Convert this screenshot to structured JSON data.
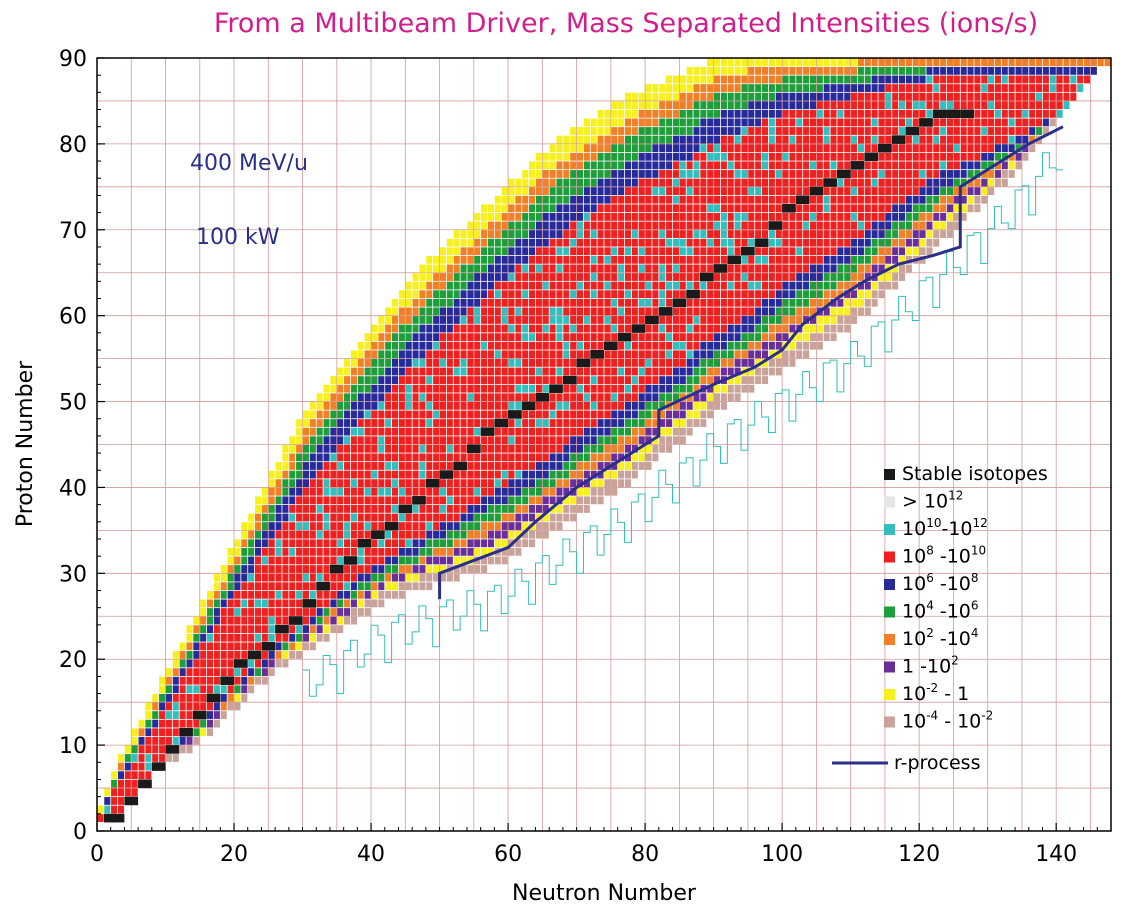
{
  "chart_data": {
    "type": "heatmap",
    "title": "From a Multibeam Driver, Mass Separated Intensities (ions/s)",
    "xlabel": "Neutron Number",
    "ylabel": "Proton Number",
    "xlim": [
      0,
      148
    ],
    "ylim": [
      0,
      90
    ],
    "x_ticks": [
      "0",
      "20",
      "40",
      "60",
      "80",
      "100",
      "120",
      "140"
    ],
    "y_ticks": [
      "0",
      "10",
      "20",
      "30",
      "40",
      "50",
      "60",
      "70",
      "80",
      "90"
    ],
    "grid": true,
    "annotations": [
      "400 MeV/u",
      "100 kW"
    ],
    "legend_position": "right",
    "legend": [
      {
        "label": "Stable isotopes",
        "color": "#1a1a1a"
      },
      {
        "base": "> 10",
        "sup": "12",
        "color": "#e6e6e6"
      },
      {
        "base": "10",
        "sup": "10",
        "mid": "-10",
        "sup2": "12",
        "color": "#33bdbd"
      },
      {
        "base": "10",
        "sup": "8",
        "mid": " -10",
        "sup2": "10",
        "color": "#ee2020"
      },
      {
        "base": "10",
        "sup": "6",
        "mid": " -10",
        "sup2": "8",
        "color": "#262a9a"
      },
      {
        "base": "10",
        "sup": "4",
        "mid": " -10",
        "sup2": "6",
        "color": "#1e9e3a"
      },
      {
        "base": "10",
        "sup": "2",
        "mid": " -10",
        "sup2": "4",
        "color": "#f07f26"
      },
      {
        "base": "1  -10",
        "sup": "2",
        "color": "#6a2e9a"
      },
      {
        "base": "10",
        "sup": "-2",
        "mid": " - 1",
        "color": "#f7ef1e"
      },
      {
        "base": "10",
        "sup": "-4",
        "mid": " - 10",
        "sup2": "-2",
        "color": "#c9a29a"
      }
    ],
    "line_legend": {
      "label": "r-process",
      "color": "#2a2f8a"
    },
    "stable_line": [
      [
        1,
        1
      ],
      [
        2,
        1
      ],
      [
        4,
        3
      ],
      [
        6,
        5
      ],
      [
        8,
        7
      ],
      [
        10,
        9
      ],
      [
        12,
        11
      ],
      [
        14,
        13
      ],
      [
        16,
        15
      ],
      [
        18,
        17
      ],
      [
        20,
        19
      ],
      [
        22,
        20
      ],
      [
        24,
        21
      ],
      [
        26,
        23
      ],
      [
        28,
        24
      ],
      [
        30,
        26
      ],
      [
        32,
        28
      ],
      [
        34,
        30
      ],
      [
        36,
        31
      ],
      [
        38,
        33
      ],
      [
        40,
        34
      ],
      [
        42,
        35
      ],
      [
        44,
        37
      ],
      [
        46,
        38
      ],
      [
        48,
        40
      ],
      [
        50,
        41
      ],
      [
        52,
        42
      ],
      [
        54,
        44
      ],
      [
        56,
        46
      ],
      [
        58,
        47
      ],
      [
        60,
        48
      ],
      [
        62,
        49
      ],
      [
        64,
        50
      ],
      [
        66,
        51
      ],
      [
        68,
        52
      ],
      [
        70,
        54
      ],
      [
        72,
        55
      ],
      [
        74,
        56
      ],
      [
        76,
        57
      ],
      [
        78,
        58
      ],
      [
        80,
        59
      ],
      [
        82,
        60
      ],
      [
        84,
        61
      ],
      [
        86,
        62
      ],
      [
        88,
        64
      ],
      [
        90,
        65
      ],
      [
        92,
        66
      ],
      [
        94,
        67
      ],
      [
        96,
        68
      ],
      [
        98,
        70
      ],
      [
        100,
        72
      ],
      [
        102,
        73
      ],
      [
        104,
        74
      ],
      [
        106,
        75
      ],
      [
        108,
        76
      ],
      [
        110,
        77
      ],
      [
        112,
        78
      ],
      [
        114,
        79
      ],
      [
        116,
        80
      ],
      [
        118,
        81
      ],
      [
        120,
        82
      ],
      [
        122,
        83
      ],
      [
        124,
        83
      ],
      [
        126,
        83
      ]
    ],
    "r_process": [
      [
        50,
        27
      ],
      [
        50,
        30
      ],
      [
        60,
        33
      ],
      [
        64,
        36
      ],
      [
        70,
        40
      ],
      [
        76,
        43
      ],
      [
        82,
        46
      ],
      [
        82,
        49
      ],
      [
        90,
        52
      ],
      [
        96,
        54
      ],
      [
        100,
        56
      ],
      [
        103,
        59
      ],
      [
        108,
        62
      ],
      [
        112,
        64
      ],
      [
        117,
        66
      ],
      [
        122,
        67
      ],
      [
        126,
        68
      ],
      [
        126,
        75
      ],
      [
        130,
        77
      ],
      [
        136,
        80
      ],
      [
        141,
        82
      ]
    ],
    "neutron_dripline": [
      [
        2,
        1
      ],
      [
        4,
        3
      ],
      [
        7,
        6
      ],
      [
        10,
        8
      ],
      [
        14,
        10
      ],
      [
        18,
        13
      ],
      [
        22,
        16
      ],
      [
        26,
        19
      ],
      [
        30,
        21
      ],
      [
        34,
        23
      ],
      [
        38,
        25
      ],
      [
        42,
        27
      ],
      [
        46,
        28
      ],
      [
        50,
        29
      ],
      [
        54,
        30
      ],
      [
        58,
        31
      ],
      [
        62,
        33
      ],
      [
        66,
        35
      ],
      [
        70,
        37
      ],
      [
        74,
        39
      ],
      [
        78,
        41
      ],
      [
        82,
        44
      ],
      [
        86,
        46
      ],
      [
        90,
        49
      ],
      [
        94,
        51
      ],
      [
        98,
        53
      ],
      [
        102,
        55
      ],
      [
        106,
        57
      ],
      [
        110,
        59
      ],
      [
        114,
        62
      ],
      [
        118,
        65
      ],
      [
        122,
        68
      ],
      [
        126,
        71
      ],
      [
        130,
        74
      ],
      [
        134,
        77
      ],
      [
        138,
        81
      ],
      [
        142,
        85
      ],
      [
        146,
        89
      ]
    ],
    "proton_dripline": [
      [
        0,
        2
      ],
      [
        2,
        6
      ],
      [
        4,
        9
      ],
      [
        6,
        12
      ],
      [
        8,
        15
      ],
      [
        10,
        18
      ],
      [
        12,
        21
      ],
      [
        14,
        24
      ],
      [
        16,
        27
      ],
      [
        18,
        30
      ],
      [
        20,
        33
      ],
      [
        22,
        36
      ],
      [
        24,
        39
      ],
      [
        26,
        42
      ],
      [
        28,
        45
      ],
      [
        30,
        48
      ],
      [
        34,
        52
      ],
      [
        38,
        56
      ],
      [
        42,
        60
      ],
      [
        46,
        64
      ],
      [
        50,
        67
      ],
      [
        54,
        70
      ],
      [
        58,
        73
      ],
      [
        62,
        76
      ],
      [
        66,
        79
      ],
      [
        70,
        81
      ],
      [
        74,
        83
      ],
      [
        78,
        85
      ],
      [
        84,
        87
      ],
      [
        90,
        89
      ],
      [
        96,
        90
      ]
    ]
  }
}
